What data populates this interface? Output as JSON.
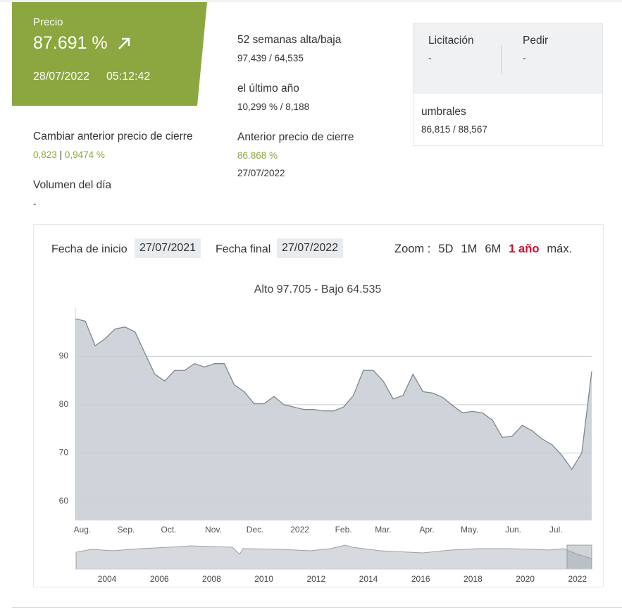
{
  "price": {
    "label": "Precio",
    "value": "87.691 %",
    "date": "28/07/2022",
    "time": "05:12:42"
  },
  "stats": [
    {
      "label": "52 semanas alta/baja",
      "value": "97,439 / 64,535"
    },
    {
      "label": "el último año",
      "value": "10,299 % / 8,188"
    }
  ],
  "previous_close": {
    "label": "Anterior precio de cierre",
    "value": "86.868 %",
    "date": "27/07/2022"
  },
  "change": {
    "label": "Cambiar anterior precio de cierre",
    "abs": "0,823",
    "sep": "|",
    "pct": "0,9474 %"
  },
  "volume": {
    "label": "Volumen del día",
    "value": "-"
  },
  "quote": {
    "bid_label": "Licitación",
    "bid": "-",
    "ask_label": "Pedir",
    "ask": "-",
    "thresholds_label": "umbrales",
    "thresholds": "86,815 / 88,567"
  },
  "controls": {
    "start_label": "Fecha de inicio",
    "start": "27/07/2021",
    "end_label": "Fecha final",
    "end": "27/07/2022",
    "zoom_label": "Zoom :",
    "zoom": [
      "5D",
      "1M",
      "6M",
      "1 año",
      "máx."
    ],
    "zoom_active": 3
  },
  "chart_data": {
    "type": "area",
    "title": "Alto 97.705 - Bajo 64.535",
    "values": [
      97.8,
      97.3,
      92.2,
      93.7,
      95.7,
      96.1,
      95.1,
      90.7,
      86.3,
      84.9,
      87.1,
      87.1,
      88.5,
      87.8,
      88.5,
      88.5,
      84.1,
      82.7,
      80.2,
      80.2,
      81.7,
      80.0,
      79.5,
      79.0,
      79.0,
      78.7,
      78.7,
      79.5,
      81.9,
      87.1,
      87.1,
      84.9,
      81.2,
      81.9,
      86.3,
      82.7,
      82.4,
      81.5,
      79.8,
      78.3,
      78.6,
      78.3,
      76.8,
      73.2,
      73.5,
      75.7,
      74.6,
      72.9,
      71.7,
      69.5,
      66.6,
      70.0,
      86.9
    ],
    "xlim": [
      0,
      52
    ],
    "xticks": [
      {
        "value": 0.7,
        "label": "Aug."
      },
      {
        "value": 5.1,
        "label": "Sep."
      },
      {
        "value": 9.4,
        "label": "Oct."
      },
      {
        "value": 13.9,
        "label": "Nov."
      },
      {
        "value": 18.1,
        "label": "Dec."
      },
      {
        "value": 22.6,
        "label": "2022"
      },
      {
        "value": 27,
        "label": "Feb."
      },
      {
        "value": 31,
        "label": "Mar."
      },
      {
        "value": 35.4,
        "label": "Apr."
      },
      {
        "value": 39.7,
        "label": "May."
      },
      {
        "value": 44.1,
        "label": "Jun."
      },
      {
        "value": 48.4,
        "label": "Jul."
      }
    ],
    "ylim": [
      56,
      100
    ],
    "yticks": [
      60,
      70,
      80,
      90
    ],
    "grid": true,
    "color": "#cfd4da",
    "line_color": "#80868e"
  },
  "navigator": {
    "years": [
      "2004",
      "2006",
      "2008",
      "2010",
      "2012",
      "2014",
      "2016",
      "2018",
      "2020",
      "2022"
    ]
  }
}
